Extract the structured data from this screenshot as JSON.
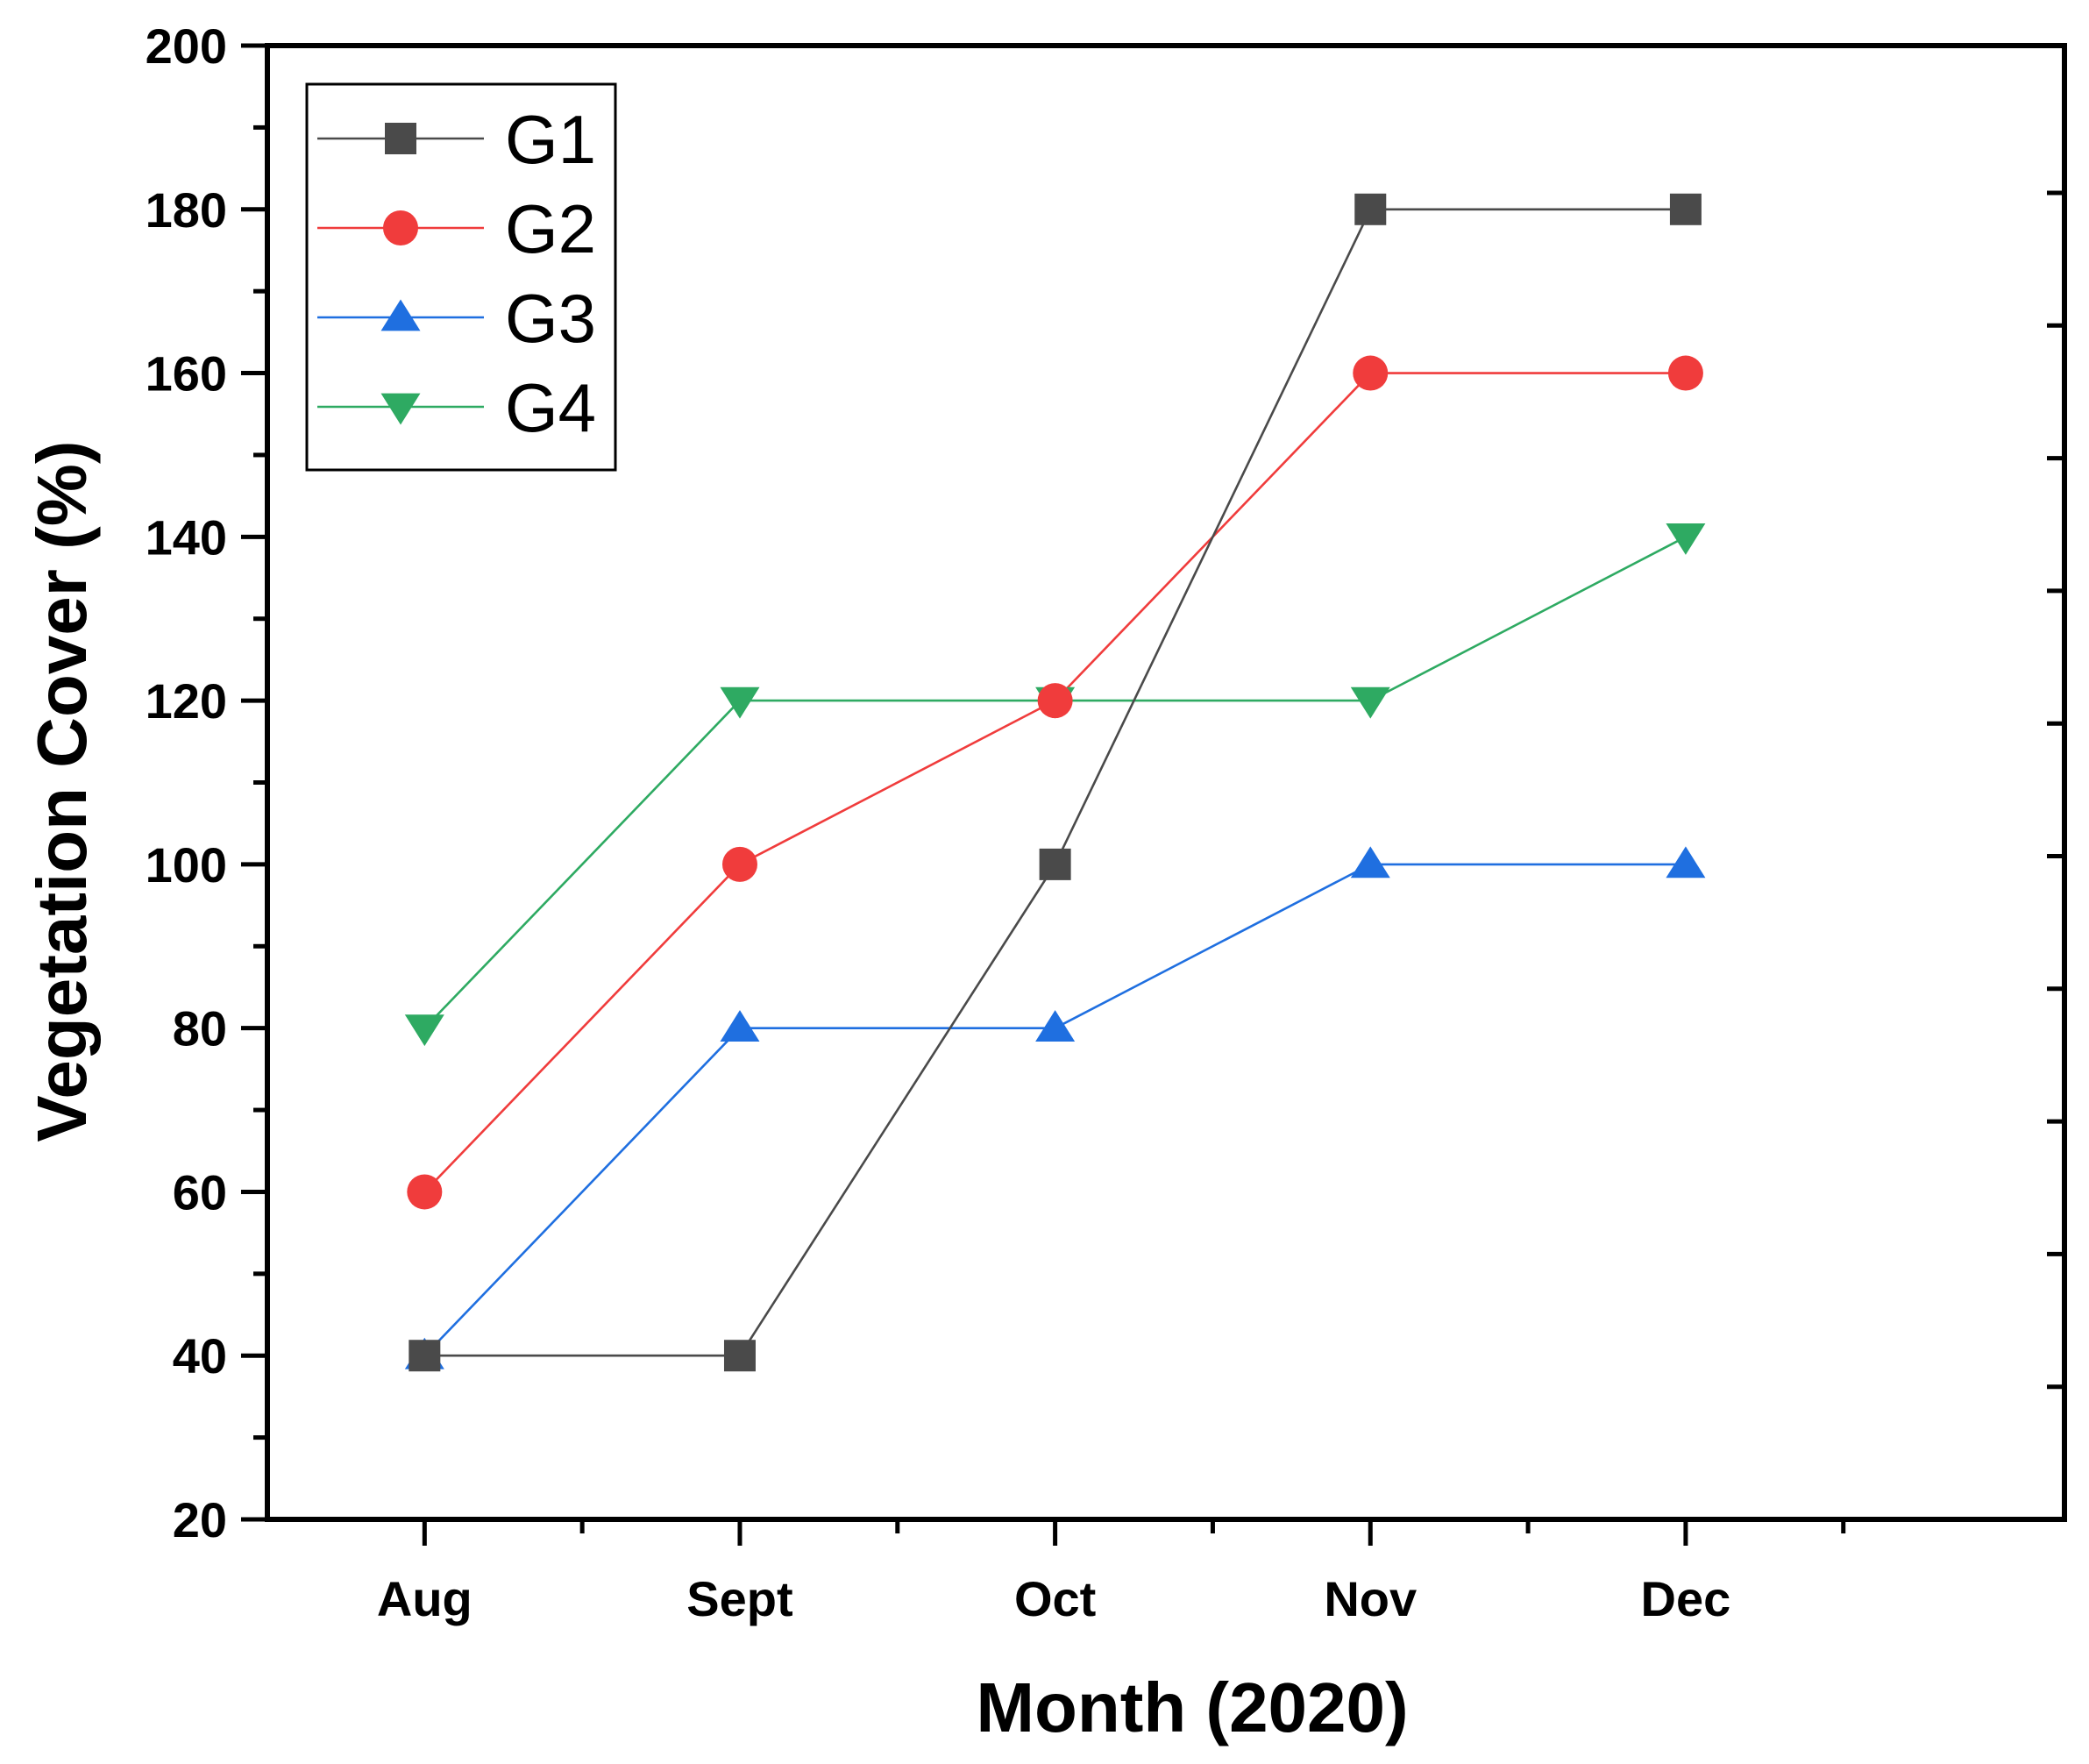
{
  "chart_data": {
    "type": "line",
    "title": "",
    "xlabel": "Month (2020)",
    "ylabel": "Vegetation Cover (%)",
    "categories": [
      "Aug",
      "Sept",
      "Oct",
      "Nov",
      "Dec"
    ],
    "ylim": [
      20,
      200
    ],
    "yticks": [
      20,
      40,
      60,
      80,
      100,
      120,
      140,
      160,
      180,
      200
    ],
    "grid": false,
    "legend_position": "top-left",
    "series": [
      {
        "name": "G1",
        "marker": "square",
        "color": "#4a4a4a",
        "values": [
          40,
          40,
          100,
          180,
          180
        ]
      },
      {
        "name": "G2",
        "marker": "circle",
        "color": "#f03c3c",
        "values": [
          60,
          100,
          120,
          160,
          160
        ]
      },
      {
        "name": "G3",
        "marker": "triangle-up",
        "color": "#1f6fe0",
        "values": [
          40,
          80,
          80,
          100,
          100
        ]
      },
      {
        "name": "G4",
        "marker": "triangle-down",
        "color": "#2eaa62",
        "values": [
          80,
          120,
          120,
          120,
          140
        ]
      }
    ]
  }
}
